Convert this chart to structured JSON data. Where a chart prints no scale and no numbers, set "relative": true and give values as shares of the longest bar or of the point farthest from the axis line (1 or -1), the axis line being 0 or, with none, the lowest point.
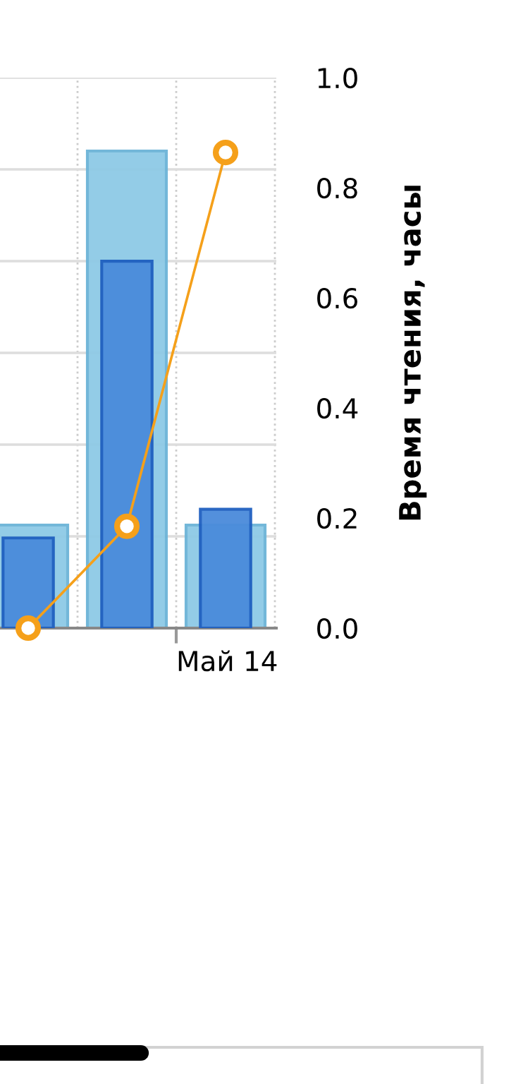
{
  "chart_data": {
    "type": "bar",
    "relative": true,
    "categories": [
      null,
      null,
      null
    ],
    "series": [
      {
        "color": "#8ecae6",
        "values": [
          0.216,
          1,
          0.216
        ]
      },
      {
        "color": "#4a8bdb",
        "values": [
          0.189,
          0.769,
          0.249
        ]
      },
      {
        "type": "line",
        "axis": "y2",
        "color": "#f5a01a",
        "marker": "circle",
        "values": [
          0.0,
          0.185,
          0.864
        ]
      }
    ],
    "annotations": [
      "Май 14"
    ],
    "y2label": "Время чтения, часы",
    "y2lim": [
      0,
      1
    ],
    "y2ticks": [
      {
        "value": 0,
        "label": "0.0"
      },
      {
        "value": 0.2,
        "label": "0.2"
      },
      {
        "value": 0.4,
        "label": "0.4"
      },
      {
        "value": 0.6,
        "label": "0.6"
      },
      {
        "value": 0.8,
        "label": "0.8"
      },
      {
        "value": 1,
        "label": "1.0"
      }
    ],
    "grid": true
  }
}
